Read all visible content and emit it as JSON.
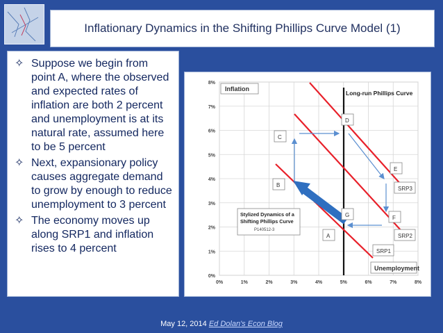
{
  "slide": {
    "title": "Inflationary Dynamics in the Shifting Phillips Curve Model (1)",
    "bullets": [
      "Suppose we begin from point A, where the observed and expected rates of inflation are both 2 percent and unemployment is at its natural rate, assumed here to be 5 percent",
      "Next, expansionary policy causes aggregate demand to grow by enough to reduce unemployment to 3 percent",
      "The economy moves up along SRP1 and inflation rises to 4 percent"
    ],
    "bullet_icon": "four-point-star-outline-icon",
    "footer_date": "May 12, 2014",
    "footer_link": "Ed Dolan's Econ Blog"
  },
  "diagram": {
    "y_label": "Inflation",
    "x_label": "Unemployment",
    "y_ticks": [
      "0%",
      "1%",
      "2%",
      "3%",
      "4%",
      "5%",
      "6%",
      "7%",
      "8%"
    ],
    "x_ticks": [
      "0%",
      "1%",
      "2%",
      "3%",
      "4%",
      "5%",
      "6%",
      "7%",
      "8%"
    ],
    "lrpc_label": "Long-run Phillips Curve",
    "stylized_title": "Stylized Dynamics of a Shifting Phillips Curve",
    "stylized_code": "P140512-3",
    "curve_labels": [
      "SRP1",
      "SRP2",
      "SRP3"
    ],
    "points": {
      "A": "A",
      "B": "B",
      "C": "C",
      "D": "D",
      "E": "E",
      "F": "F",
      "G": "G"
    },
    "colors": {
      "curve": "#e8202a",
      "lrpc": "#111111",
      "arrow": "#5b8fd0",
      "big_arrow": "#2f6fc0"
    }
  }
}
